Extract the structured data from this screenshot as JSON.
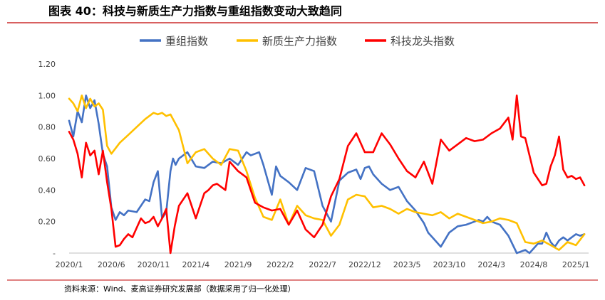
{
  "figure_title": "图表 40：科技与新质生产力指数与重组指数变动大致趋同",
  "source": "资料来源：Wind、麦高证券研究发展部（数据采用了归一化处理）",
  "chart_data": {
    "type": "line",
    "title": "",
    "xlabel": "",
    "ylabel": "",
    "ylim": [
      0,
      1.2
    ],
    "yticks": [
      0,
      0.2,
      0.4,
      0.6,
      0.8,
      1.0,
      1.2
    ],
    "ytick_labels": [
      "-",
      "0.20",
      "0.40",
      "0.60",
      "0.80",
      "1.00",
      "1.20"
    ],
    "xticks": [
      "2020/1",
      "2020/6",
      "2020/11",
      "2021/4",
      "2021/9",
      "2022/2",
      "2022/7",
      "2022/12",
      "2023/5",
      "2023/10",
      "2024/3",
      "2024/8",
      "2025/1"
    ],
    "x_range": [
      0,
      61.5
    ],
    "grid": false,
    "legend_position": "top-center",
    "series": [
      {
        "name": "重组指数",
        "color": "#4472C4",
        "x": [
          0,
          0.5,
          1,
          1.5,
          2,
          2.5,
          3,
          3.5,
          4,
          4.5,
          5,
          5.5,
          6,
          6.5,
          7,
          8,
          9,
          9.5,
          10,
          10.5,
          11,
          11.5,
          12,
          12.3,
          12.6,
          13,
          14,
          15,
          16,
          17,
          18,
          19,
          20,
          21,
          21.5,
          22,
          22.5,
          23,
          24,
          24.5,
          25,
          26,
          27,
          28,
          29,
          30,
          31,
          32,
          33,
          34,
          34.5,
          35,
          35.5,
          36,
          37,
          38,
          39,
          40,
          41,
          42,
          42.5,
          43,
          44,
          45,
          46,
          47,
          48,
          48.5,
          49,
          49.5,
          50,
          51,
          52,
          53,
          54,
          54.5,
          55,
          55.5,
          56,
          56.5,
          57,
          57.5,
          58,
          58.5,
          59,
          59.5,
          60,
          60.5,
          61
        ],
        "values": [
          0.84,
          0.74,
          0.9,
          0.83,
          1.0,
          0.92,
          0.97,
          0.82,
          0.63,
          0.55,
          0.29,
          0.21,
          0.26,
          0.24,
          0.27,
          0.26,
          0.34,
          0.33,
          0.45,
          0.52,
          0.22,
          0.26,
          0.52,
          0.6,
          0.56,
          0.6,
          0.64,
          0.55,
          0.54,
          0.58,
          0.57,
          0.6,
          0.56,
          0.64,
          0.62,
          0.63,
          0.64,
          0.56,
          0.37,
          0.55,
          0.49,
          0.45,
          0.4,
          0.54,
          0.52,
          0.3,
          0.2,
          0.46,
          0.51,
          0.53,
          0.47,
          0.54,
          0.55,
          0.5,
          0.44,
          0.4,
          0.42,
          0.33,
          0.27,
          0.19,
          0.13,
          0.1,
          0.04,
          0.13,
          0.17,
          0.18,
          0.2,
          0.21,
          0.2,
          0.23,
          0.2,
          0.18,
          0.11,
          0.0,
          0.02,
          0.0,
          0.03,
          0.06,
          0.06,
          0.13,
          0.07,
          0.04,
          0.08,
          0.1,
          0.08,
          0.1,
          0.12,
          0.11,
          0.12
        ]
      },
      {
        "name": "新质生产力指数",
        "color": "#FFC000",
        "x": [
          0,
          0.5,
          1,
          1.5,
          2,
          2.5,
          3,
          3.5,
          4,
          4.5,
          5,
          6,
          7,
          8,
          9,
          10,
          10.5,
          11,
          11.5,
          12,
          13,
          14,
          15,
          16,
          17,
          18,
          19,
          20,
          21,
          22,
          23,
          24,
          25,
          26,
          27,
          28,
          29,
          30,
          31,
          32,
          33,
          34,
          35,
          36,
          37,
          38,
          39,
          40,
          41,
          42,
          43,
          44,
          45,
          46,
          47,
          48,
          49,
          50,
          51,
          52,
          53,
          54,
          55,
          56,
          57,
          58,
          59,
          60,
          61
        ],
        "values": [
          0.98,
          0.95,
          0.9,
          1.0,
          0.92,
          0.98,
          0.93,
          0.95,
          0.91,
          0.68,
          0.63,
          0.7,
          0.75,
          0.8,
          0.85,
          0.89,
          0.88,
          0.89,
          0.87,
          0.88,
          0.78,
          0.57,
          0.64,
          0.66,
          0.6,
          0.56,
          0.66,
          0.65,
          0.52,
          0.35,
          0.23,
          0.21,
          0.34,
          0.18,
          0.3,
          0.24,
          0.22,
          0.21,
          0.11,
          0.18,
          0.34,
          0.37,
          0.36,
          0.29,
          0.3,
          0.28,
          0.25,
          0.28,
          0.26,
          0.25,
          0.24,
          0.26,
          0.22,
          0.25,
          0.23,
          0.21,
          0.19,
          0.2,
          0.22,
          0.21,
          0.19,
          0.07,
          0.06,
          0.08,
          0.05,
          0.02,
          0.07,
          0.05,
          0.12
        ]
      },
      {
        "name": "科技龙头指数",
        "color": "#FF0000",
        "x": [
          0,
          0.5,
          1,
          1.5,
          2,
          2.5,
          3,
          3.5,
          4,
          4.5,
          5,
          5.5,
          6,
          6.5,
          7,
          7.5,
          8,
          8.5,
          9,
          9.5,
          10,
          10.5,
          11,
          11.5,
          12,
          12.5,
          13,
          14,
          15,
          15.5,
          16,
          16.5,
          17,
          17.5,
          18,
          18.5,
          19,
          20,
          21,
          22,
          23,
          24,
          25,
          26,
          27,
          28,
          29,
          30,
          31,
          32,
          33,
          34,
          35,
          36,
          37,
          38,
          39,
          40,
          41,
          42,
          43,
          44,
          45,
          46,
          47,
          48,
          49,
          50,
          51,
          52,
          52.5,
          53,
          53.5,
          54,
          55,
          56,
          56.5,
          57,
          57.5,
          58,
          58.5,
          59,
          59.5,
          60,
          60.5,
          61
        ],
        "values": [
          0.77,
          0.72,
          0.63,
          0.48,
          0.7,
          0.62,
          0.65,
          0.5,
          0.65,
          0.45,
          0.28,
          0.04,
          0.05,
          0.09,
          0.12,
          0.1,
          0.16,
          0.22,
          0.19,
          0.2,
          0.23,
          0.17,
          0.22,
          0.28,
          0.0,
          0.17,
          0.3,
          0.38,
          0.22,
          0.3,
          0.38,
          0.4,
          0.43,
          0.44,
          0.42,
          0.4,
          0.58,
          0.52,
          0.48,
          0.32,
          0.29,
          0.27,
          0.28,
          0.18,
          0.27,
          0.15,
          0.1,
          0.18,
          0.36,
          0.47,
          0.68,
          0.76,
          0.64,
          0.64,
          0.76,
          0.69,
          0.6,
          0.52,
          0.48,
          0.58,
          0.44,
          0.72,
          0.65,
          0.69,
          0.73,
          0.71,
          0.72,
          0.76,
          0.79,
          0.86,
          0.72,
          1.0,
          0.74,
          0.73,
          0.51,
          0.43,
          0.44,
          0.55,
          0.62,
          0.74,
          0.53,
          0.48,
          0.49,
          0.47,
          0.48,
          0.43
        ]
      }
    ]
  }
}
